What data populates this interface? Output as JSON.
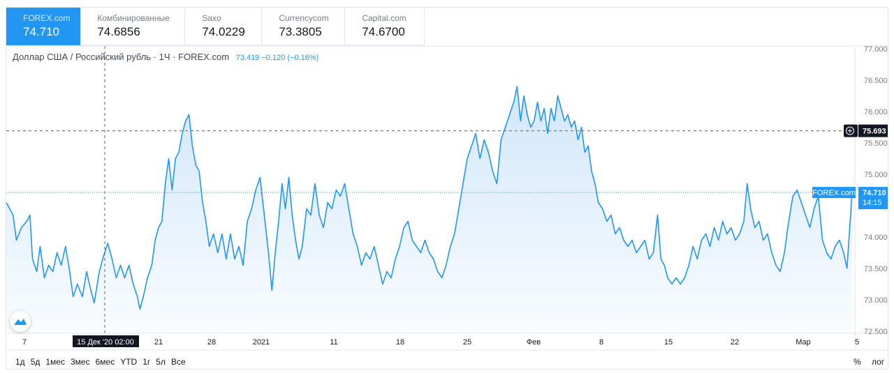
{
  "tabs": [
    {
      "name": "FOREX.com",
      "value": "74.710",
      "active": true
    },
    {
      "name": "Комбинированные",
      "value": "74.6856",
      "active": false
    },
    {
      "name": "Saxo",
      "value": "74.0229",
      "active": false
    },
    {
      "name": "Currencycom",
      "value": "73.3805",
      "active": false
    },
    {
      "name": "Capital.com",
      "value": "74.6700",
      "active": false
    }
  ],
  "legend": {
    "title": "Доллар США / Российский рубль · 1Ч · FOREX.com",
    "values": "73.419  −0.120 (−0.16%)"
  },
  "periods": [
    "1д",
    "5д",
    "1мес",
    "3мес",
    "6мес",
    "YTD",
    "1г",
    "5л",
    "Все"
  ],
  "controls": {
    "percent": "%",
    "log": "лог"
  },
  "colors": {
    "line": "#2196f3",
    "fill_top": "#cfe6fb",
    "crosshair": "#787b86"
  },
  "chart_data": {
    "type": "area",
    "title": "Доллар США / Российский рубль · 1Ч · FOREX.com",
    "y_ticks": [
      "77.000",
      "76.500",
      "76.000",
      "75.500",
      "75.000",
      "74.500",
      "74.000",
      "73.500",
      "73.000",
      "72.500"
    ],
    "ylim": [
      72.5,
      77.0
    ],
    "x_ticks": [
      "7",
      "21",
      "28",
      "2021",
      "11",
      "18",
      "25",
      "Фев",
      "8",
      "15",
      "22",
      "Мар",
      "5"
    ],
    "crosshair": {
      "x_label": "15 Дек '20   02:00",
      "y_value": 75.693,
      "y_label": "75.693"
    },
    "last_price": {
      "label": "FOREX.com",
      "value": "74.710",
      "countdown": "14:15",
      "y": 74.71
    },
    "series": [
      {
        "values": [
          [
            0.0,
            74.55
          ],
          [
            0.008,
            74.35
          ],
          [
            0.012,
            73.95
          ],
          [
            0.018,
            74.15
          ],
          [
            0.024,
            74.25
          ],
          [
            0.028,
            74.35
          ],
          [
            0.031,
            73.65
          ],
          [
            0.036,
            73.45
          ],
          [
            0.04,
            73.85
          ],
          [
            0.045,
            73.35
          ],
          [
            0.05,
            73.55
          ],
          [
            0.055,
            73.45
          ],
          [
            0.06,
            73.75
          ],
          [
            0.065,
            73.55
          ],
          [
            0.07,
            73.85
          ],
          [
            0.075,
            73.45
          ],
          [
            0.079,
            73.05
          ],
          [
            0.084,
            73.25
          ],
          [
            0.09,
            73.05
          ],
          [
            0.095,
            73.45
          ],
          [
            0.1,
            73.15
          ],
          [
            0.104,
            72.95
          ],
          [
            0.11,
            73.45
          ],
          [
            0.115,
            73.7
          ],
          [
            0.12,
            73.9
          ],
          [
            0.125,
            73.65
          ],
          [
            0.13,
            73.35
          ],
          [
            0.135,
            73.55
          ],
          [
            0.14,
            73.35
          ],
          [
            0.145,
            73.55
          ],
          [
            0.15,
            73.25
          ],
          [
            0.155,
            73.05
          ],
          [
            0.158,
            72.85
          ],
          [
            0.162,
            73.05
          ],
          [
            0.167,
            73.35
          ],
          [
            0.172,
            73.55
          ],
          [
            0.176,
            73.95
          ],
          [
            0.18,
            74.15
          ],
          [
            0.184,
            74.25
          ],
          [
            0.188,
            74.85
          ],
          [
            0.192,
            75.25
          ],
          [
            0.196,
            74.75
          ],
          [
            0.2,
            75.25
          ],
          [
            0.204,
            75.35
          ],
          [
            0.208,
            75.65
          ],
          [
            0.212,
            75.85
          ],
          [
            0.216,
            75.95
          ],
          [
            0.22,
            75.45
          ],
          [
            0.224,
            75.15
          ],
          [
            0.228,
            75.05
          ],
          [
            0.232,
            74.55
          ],
          [
            0.236,
            74.25
          ],
          [
            0.24,
            73.85
          ],
          [
            0.245,
            74.05
          ],
          [
            0.25,
            73.75
          ],
          [
            0.255,
            74.05
          ],
          [
            0.26,
            73.65
          ],
          [
            0.265,
            74.05
          ],
          [
            0.27,
            73.65
          ],
          [
            0.275,
            73.85
          ],
          [
            0.28,
            73.55
          ],
          [
            0.285,
            74.25
          ],
          [
            0.29,
            74.45
          ],
          [
            0.295,
            74.75
          ],
          [
            0.3,
            74.95
          ],
          [
            0.305,
            74.35
          ],
          [
            0.31,
            73.75
          ],
          [
            0.314,
            73.15
          ],
          [
            0.318,
            73.75
          ],
          [
            0.322,
            74.25
          ],
          [
            0.326,
            74.85
          ],
          [
            0.33,
            74.45
          ],
          [
            0.334,
            74.95
          ],
          [
            0.338,
            74.35
          ],
          [
            0.342,
            73.95
          ],
          [
            0.346,
            73.65
          ],
          [
            0.35,
            73.85
          ],
          [
            0.355,
            74.45
          ],
          [
            0.36,
            74.35
          ],
          [
            0.365,
            74.85
          ],
          [
            0.37,
            74.35
          ],
          [
            0.375,
            74.15
          ],
          [
            0.38,
            74.55
          ],
          [
            0.385,
            74.45
          ],
          [
            0.39,
            74.75
          ],
          [
            0.395,
            74.65
          ],
          [
            0.4,
            74.85
          ],
          [
            0.405,
            74.45
          ],
          [
            0.41,
            74.05
          ],
          [
            0.415,
            73.85
          ],
          [
            0.42,
            73.55
          ],
          [
            0.425,
            73.75
          ],
          [
            0.43,
            73.65
          ],
          [
            0.435,
            73.85
          ],
          [
            0.44,
            73.55
          ],
          [
            0.445,
            73.25
          ],
          [
            0.45,
            73.45
          ],
          [
            0.455,
            73.35
          ],
          [
            0.46,
            73.65
          ],
          [
            0.465,
            73.85
          ],
          [
            0.47,
            74.15
          ],
          [
            0.475,
            74.25
          ],
          [
            0.48,
            73.95
          ],
          [
            0.485,
            73.85
          ],
          [
            0.49,
            73.75
          ],
          [
            0.495,
            73.95
          ],
          [
            0.5,
            73.75
          ],
          [
            0.505,
            73.65
          ],
          [
            0.51,
            73.45
          ],
          [
            0.515,
            73.35
          ],
          [
            0.52,
            73.55
          ],
          [
            0.525,
            73.85
          ],
          [
            0.53,
            74.05
          ],
          [
            0.535,
            74.45
          ],
          [
            0.54,
            74.85
          ],
          [
            0.545,
            75.25
          ],
          [
            0.55,
            75.45
          ],
          [
            0.555,
            75.65
          ],
          [
            0.56,
            75.25
          ],
          [
            0.565,
            75.55
          ],
          [
            0.57,
            75.35
          ],
          [
            0.575,
            75.05
          ],
          [
            0.58,
            74.85
          ],
          [
            0.585,
            75.55
          ],
          [
            0.59,
            75.75
          ],
          [
            0.595,
            75.95
          ],
          [
            0.6,
            76.15
          ],
          [
            0.604,
            76.4
          ],
          [
            0.608,
            75.85
          ],
          [
            0.612,
            76.25
          ],
          [
            0.616,
            75.95
          ],
          [
            0.62,
            75.75
          ],
          [
            0.624,
            75.85
          ],
          [
            0.628,
            76.15
          ],
          [
            0.632,
            75.85
          ],
          [
            0.636,
            76.05
          ],
          [
            0.64,
            75.65
          ],
          [
            0.644,
            76.05
          ],
          [
            0.648,
            75.85
          ],
          [
            0.652,
            76.25
          ],
          [
            0.656,
            76.05
          ],
          [
            0.66,
            75.85
          ],
          [
            0.664,
            75.95
          ],
          [
            0.668,
            75.75
          ],
          [
            0.672,
            75.85
          ],
          [
            0.676,
            75.55
          ],
          [
            0.68,
            75.75
          ],
          [
            0.684,
            75.35
          ],
          [
            0.688,
            75.45
          ],
          [
            0.692,
            75.05
          ],
          [
            0.696,
            74.85
          ],
          [
            0.7,
            74.55
          ],
          [
            0.705,
            74.45
          ],
          [
            0.71,
            74.25
          ],
          [
            0.715,
            74.35
          ],
          [
            0.72,
            74.05
          ],
          [
            0.725,
            74.15
          ],
          [
            0.73,
            73.95
          ],
          [
            0.735,
            73.85
          ],
          [
            0.74,
            73.95
          ],
          [
            0.745,
            73.75
          ],
          [
            0.75,
            73.85
          ],
          [
            0.755,
            73.95
          ],
          [
            0.76,
            73.65
          ],
          [
            0.765,
            73.75
          ],
          [
            0.77,
            74.35
          ],
          [
            0.774,
            73.65
          ],
          [
            0.778,
            73.55
          ],
          [
            0.782,
            73.35
          ],
          [
            0.787,
            73.25
          ],
          [
            0.792,
            73.35
          ],
          [
            0.797,
            73.25
          ],
          [
            0.802,
            73.35
          ],
          [
            0.807,
            73.55
          ],
          [
            0.812,
            73.85
          ],
          [
            0.817,
            73.65
          ],
          [
            0.822,
            73.95
          ],
          [
            0.827,
            74.05
          ],
          [
            0.832,
            73.85
          ],
          [
            0.837,
            74.15
          ],
          [
            0.842,
            73.95
          ],
          [
            0.847,
            74.25
          ],
          [
            0.852,
            74.05
          ],
          [
            0.857,
            74.15
          ],
          [
            0.862,
            73.95
          ],
          [
            0.867,
            74.05
          ],
          [
            0.872,
            74.25
          ],
          [
            0.876,
            74.85
          ],
          [
            0.88,
            74.45
          ],
          [
            0.885,
            74.15
          ],
          [
            0.89,
            74.25
          ],
          [
            0.895,
            73.95
          ],
          [
            0.9,
            74.05
          ],
          [
            0.905,
            73.75
          ],
          [
            0.91,
            73.55
          ],
          [
            0.915,
            73.45
          ],
          [
            0.92,
            73.75
          ],
          [
            0.925,
            74.25
          ],
          [
            0.93,
            74.65
          ],
          [
            0.935,
            74.75
          ],
          [
            0.94,
            74.55
          ],
          [
            0.945,
            74.35
          ],
          [
            0.95,
            74.15
          ],
          [
            0.955,
            74.45
          ],
          [
            0.96,
            74.65
          ],
          [
            0.965,
            73.95
          ],
          [
            0.97,
            73.75
          ],
          [
            0.975,
            73.65
          ],
          [
            0.98,
            73.85
          ],
          [
            0.985,
            73.95
          ],
          [
            0.99,
            73.75
          ],
          [
            0.994,
            73.5
          ],
          [
            1.0,
            74.71
          ]
        ]
      }
    ]
  }
}
